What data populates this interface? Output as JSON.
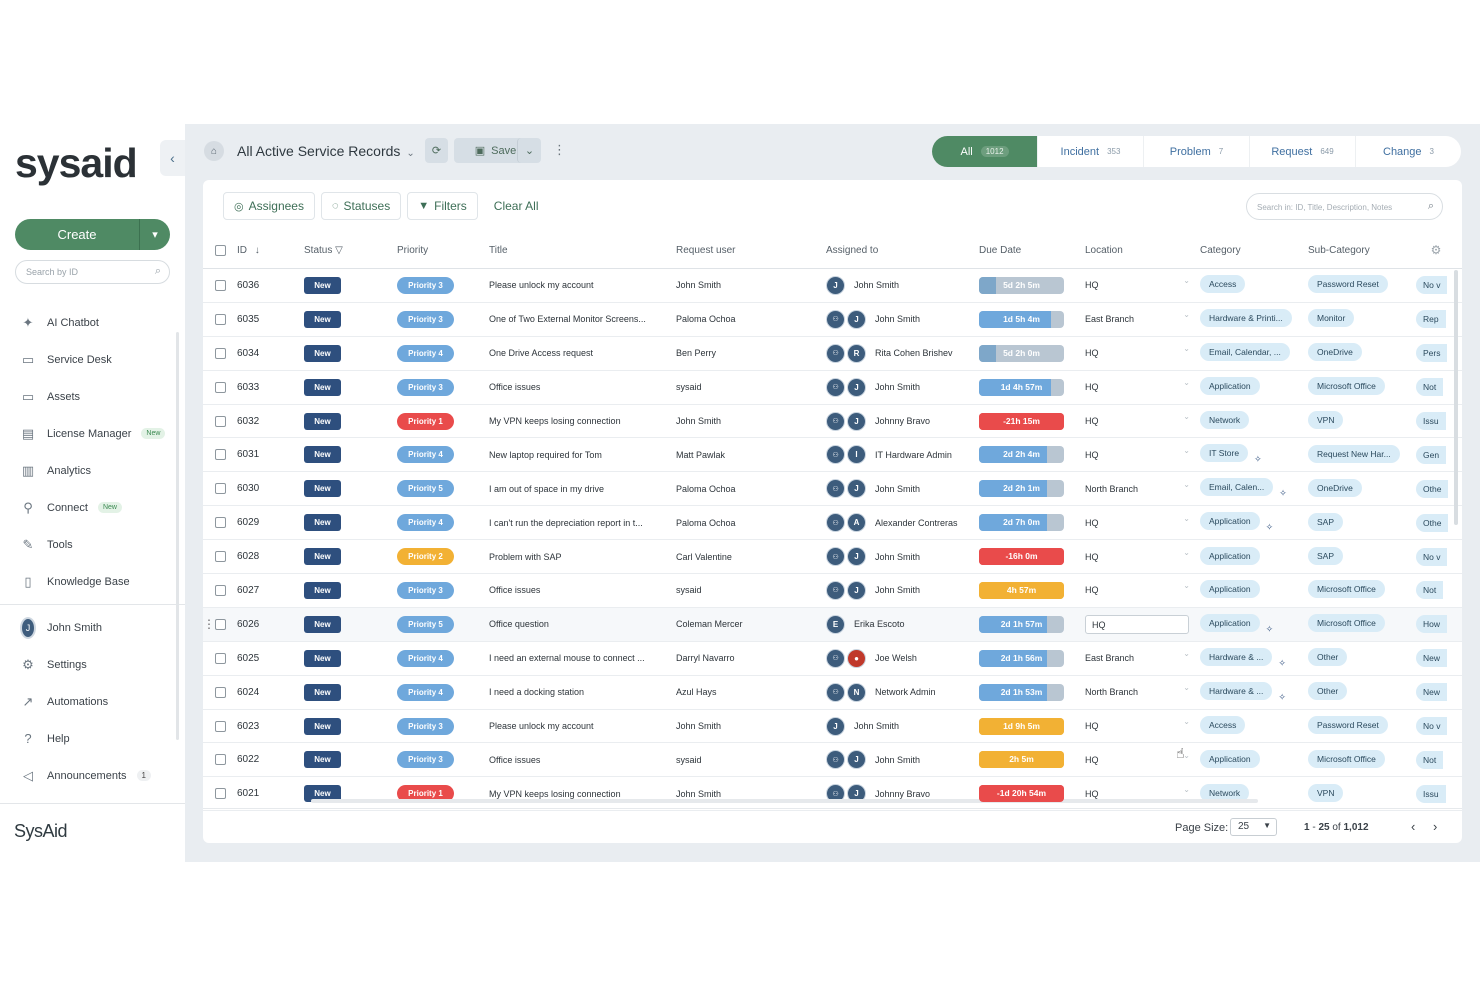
{
  "sidebar": {
    "logo": "sysaid",
    "create_label": "Create",
    "search_placeholder": "Search by ID",
    "items": [
      {
        "label": "AI Chatbot",
        "icon": "chatbot-icon",
        "badge": ""
      },
      {
        "label": "Service Desk",
        "icon": "service-desk-icon",
        "badge": ""
      },
      {
        "label": "Assets",
        "icon": "assets-icon",
        "badge": ""
      },
      {
        "label": "License Manager",
        "icon": "license-icon",
        "badge": "New"
      },
      {
        "label": "Analytics",
        "icon": "analytics-icon",
        "badge": ""
      },
      {
        "label": "Connect",
        "icon": "connect-icon",
        "badge": "New"
      },
      {
        "label": "Tools",
        "icon": "tools-icon",
        "badge": ""
      },
      {
        "label": "Knowledge Base",
        "icon": "book-icon",
        "badge": ""
      }
    ],
    "user": {
      "initial": "J",
      "name": "John Smith"
    },
    "items2": [
      {
        "label": "Settings",
        "icon": "gear-icon",
        "badge": ""
      },
      {
        "label": "Automations",
        "icon": "automation-icon",
        "badge": ""
      },
      {
        "label": "Help",
        "icon": "help-icon",
        "badge": ""
      },
      {
        "label": "Announcements",
        "icon": "megaphone-icon",
        "badge": "1"
      }
    ],
    "footer_brand": "SysAid"
  },
  "topbar": {
    "view_title": "All Active Service Records",
    "save_label": "Save",
    "tabs": [
      {
        "label": "All",
        "count": "1012"
      },
      {
        "label": "Incident",
        "count": "353"
      },
      {
        "label": "Problem",
        "count": "7"
      },
      {
        "label": "Request",
        "count": "649"
      },
      {
        "label": "Change",
        "count": "3"
      }
    ]
  },
  "filters": {
    "assignees": "Assignees",
    "statuses": "Statuses",
    "filters": "Filters",
    "clear_all": "Clear All",
    "search_placeholder": "Search in: ID, Title, Description, Notes"
  },
  "columns": {
    "id": "ID",
    "status": "Status",
    "priority": "Priority",
    "title": "Title",
    "request_user": "Request user",
    "assigned_to": "Assigned to",
    "due_date": "Due Date",
    "location": "Location",
    "category": "Category",
    "sub_category": "Sub-Category"
  },
  "colors": {
    "brand_green": "#4f8a64",
    "status_new": "#2e4f7e",
    "priority_1": "#e94b4b",
    "priority_2": "#f2b134",
    "priority_3": "#6fa8dc",
    "priority_4": "#6fa8dc",
    "priority_5": "#6fa8dc",
    "due_blue": "#6fa8dc",
    "due_red": "#e94b4b",
    "due_yellow": "#f2b134"
  },
  "rows": [
    {
      "id": "6036",
      "status": "New",
      "priority": "Priority 3",
      "pcolor": "#6fa8dc",
      "title": "Please unlock my account",
      "user": "John Smith",
      "group": false,
      "av": "J",
      "assigned": "John Smith",
      "due": "5d 2h 5m",
      "dcolor": "#7ea7c9",
      "dfill": 0.2,
      "location": "HQ",
      "category": "Access",
      "cat_ai": false,
      "sub": "Password Reset",
      "last": "No v"
    },
    {
      "id": "6035",
      "status": "New",
      "priority": "Priority 3",
      "pcolor": "#6fa8dc",
      "title": "One of Two External Monitor Screens...",
      "user": "Paloma Ochoa",
      "group": true,
      "av": "J",
      "assigned": "John Smith",
      "due": "1d 5h 4m",
      "dcolor": "#6fa8dc",
      "dfill": 0.85,
      "location": "East Branch",
      "category": "Hardware & Printi...",
      "cat_ai": false,
      "sub": "Monitor",
      "last": "Rep"
    },
    {
      "id": "6034",
      "status": "New",
      "priority": "Priority 4",
      "pcolor": "#6fa8dc",
      "title": "One Drive Access request",
      "user": "Ben Perry",
      "group": true,
      "av": "R",
      "assigned": "Rita Cohen Brishev",
      "due": "5d 2h 0m",
      "dcolor": "#7ea7c9",
      "dfill": 0.2,
      "location": "HQ",
      "category": "Email, Calendar, ...",
      "cat_ai": false,
      "sub": "OneDrive",
      "last": "Pers"
    },
    {
      "id": "6033",
      "status": "New",
      "priority": "Priority 3",
      "pcolor": "#6fa8dc",
      "title": "Office issues",
      "user": "sysaid",
      "group": true,
      "av": "J",
      "assigned": "John Smith",
      "due": "1d 4h 57m",
      "dcolor": "#6fa8dc",
      "dfill": 0.85,
      "location": "HQ",
      "category": "Application",
      "cat_ai": false,
      "sub": "Microsoft Office",
      "last": "Not"
    },
    {
      "id": "6032",
      "status": "New",
      "priority": "Priority 1",
      "pcolor": "#e94b4b",
      "title": "My VPN keeps losing connection",
      "user": "John Smith",
      "group": true,
      "av": "J",
      "assigned": "Johnny Bravo",
      "due": "-21h 15m",
      "dcolor": "#e94b4b",
      "dfill": 1.0,
      "location": "HQ",
      "category": "Network",
      "cat_ai": false,
      "sub": "VPN",
      "last": "Issu"
    },
    {
      "id": "6031",
      "status": "New",
      "priority": "Priority 4",
      "pcolor": "#6fa8dc",
      "title": "New laptop required for Tom",
      "user": "Matt Pawlak",
      "group": true,
      "av": "I",
      "assigned": "IT Hardware Admin",
      "due": "2d 2h 4m",
      "dcolor": "#6fa8dc",
      "dfill": 0.8,
      "location": "HQ",
      "category": "IT Store",
      "cat_ai": true,
      "sub": "Request New Har...",
      "last": "Gen"
    },
    {
      "id": "6030",
      "status": "New",
      "priority": "Priority 5",
      "pcolor": "#6fa8dc",
      "title": "I am out of space in my drive",
      "user": "Paloma Ochoa",
      "group": true,
      "av": "J",
      "assigned": "John Smith",
      "due": "2d 2h 1m",
      "dcolor": "#6fa8dc",
      "dfill": 0.8,
      "location": "North Branch",
      "category": "Email, Calen...",
      "cat_ai": true,
      "sub": "OneDrive",
      "last": "Othe"
    },
    {
      "id": "6029",
      "status": "New",
      "priority": "Priority 4",
      "pcolor": "#6fa8dc",
      "title": "I can't run the depreciation report in t...",
      "user": "Paloma Ochoa",
      "group": true,
      "av": "A",
      "assigned": "Alexander Contreras",
      "due": "2d 7h 0m",
      "dcolor": "#6fa8dc",
      "dfill": 0.8,
      "location": "HQ",
      "category": "Application",
      "cat_ai": true,
      "sub": "SAP",
      "last": "Othe"
    },
    {
      "id": "6028",
      "status": "New",
      "priority": "Priority 2",
      "pcolor": "#f2b134",
      "title": "Problem with SAP",
      "user": "Carl Valentine",
      "group": true,
      "av": "J",
      "assigned": "John Smith",
      "due": "-16h 0m",
      "dcolor": "#e94b4b",
      "dfill": 1.0,
      "location": "HQ",
      "category": "Application",
      "cat_ai": false,
      "sub": "SAP",
      "last": "No v"
    },
    {
      "id": "6027",
      "status": "New",
      "priority": "Priority 3",
      "pcolor": "#6fa8dc",
      "title": "Office issues",
      "user": "sysaid",
      "group": true,
      "av": "J",
      "assigned": "John Smith",
      "due": "4h 57m",
      "dcolor": "#f2b134",
      "dfill": 1.0,
      "location": "HQ",
      "category": "Application",
      "cat_ai": false,
      "sub": "Microsoft Office",
      "last": "Not"
    },
    {
      "id": "6026",
      "status": "New",
      "priority": "Priority 5",
      "pcolor": "#6fa8dc",
      "title": "Office question",
      "user": "Coleman Mercer",
      "group": false,
      "av": "E",
      "assigned": "Erika Escoto",
      "due": "2d 1h 57m",
      "dcolor": "#6fa8dc",
      "dfill": 0.8,
      "location": "HQ",
      "category": "Application",
      "cat_ai": true,
      "sub": "Microsoft Office",
      "last": "How"
    },
    {
      "id": "6025",
      "status": "New",
      "priority": "Priority 4",
      "pcolor": "#6fa8dc",
      "title": "I need an external mouse to connect ...",
      "user": "Darryl Navarro",
      "group": true,
      "av": "photo",
      "assigned": "Joe Welsh",
      "due": "2d 1h 56m",
      "dcolor": "#6fa8dc",
      "dfill": 0.8,
      "location": "East Branch",
      "category": "Hardware & ...",
      "cat_ai": true,
      "sub": "Other",
      "last": "New"
    },
    {
      "id": "6024",
      "status": "New",
      "priority": "Priority 4",
      "pcolor": "#6fa8dc",
      "title": "I need a docking station",
      "user": "Azul Hays",
      "group": true,
      "av": "N",
      "assigned": "Network Admin",
      "due": "2d 1h 53m",
      "dcolor": "#6fa8dc",
      "dfill": 0.8,
      "location": "North Branch",
      "category": "Hardware & ...",
      "cat_ai": true,
      "sub": "Other",
      "last": "New"
    },
    {
      "id": "6023",
      "status": "New",
      "priority": "Priority 3",
      "pcolor": "#6fa8dc",
      "title": "Please unlock my account",
      "user": "John Smith",
      "group": false,
      "av": "J",
      "assigned": "John Smith",
      "due": "1d 9h 5m",
      "dcolor": "#f2b134",
      "dfill": 1.0,
      "location": "HQ",
      "category": "Access",
      "cat_ai": false,
      "sub": "Password Reset",
      "last": "No v"
    },
    {
      "id": "6022",
      "status": "New",
      "priority": "Priority 3",
      "pcolor": "#6fa8dc",
      "title": "Office issues",
      "user": "sysaid",
      "group": true,
      "av": "J",
      "assigned": "John Smith",
      "due": "2h 5m",
      "dcolor": "#f2b134",
      "dfill": 1.0,
      "location": "HQ",
      "category": "Application",
      "cat_ai": false,
      "sub": "Microsoft Office",
      "last": "Not"
    },
    {
      "id": "6021",
      "status": "New",
      "priority": "Priority 1",
      "pcolor": "#e94b4b",
      "title": "My VPN keeps losing connection",
      "user": "John Smith",
      "group": true,
      "av": "J",
      "assigned": "Johnny Bravo",
      "due": "-1d 20h 54m",
      "dcolor": "#e94b4b",
      "dfill": 1.0,
      "location": "HQ",
      "category": "Network",
      "cat_ai": false,
      "sub": "VPN",
      "last": "Issu"
    }
  ],
  "pagination": {
    "page_size_label": "Page Size:",
    "page_size": "25",
    "range_start": "1",
    "range_end": "25",
    "of": "of",
    "total": "1,012"
  }
}
